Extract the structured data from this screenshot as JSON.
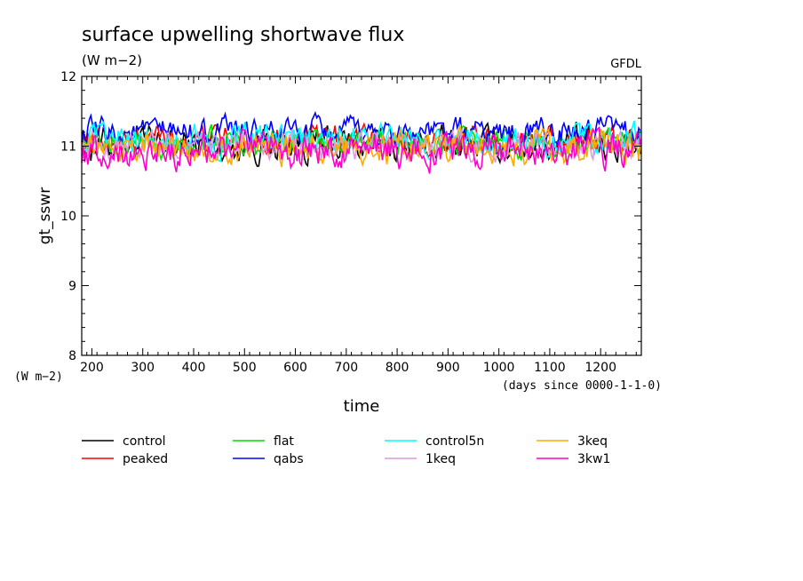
{
  "chart_data": {
    "type": "line",
    "title": "surface upwelling shortwave flux",
    "units": "(W m−2)",
    "source": "GFDL",
    "ylabel": "gt_sswr",
    "xlabel": "time",
    "x_units": "(days since 0000-1-1-0)",
    "y_units_corner": "(W m−2)",
    "xlim": [
      180,
      1280
    ],
    "ylim": [
      8,
      12
    ],
    "x_ticks": [
      200,
      300,
      400,
      500,
      600,
      700,
      800,
      900,
      1000,
      1100,
      1200
    ],
    "y_ticks": [
      8,
      9,
      10,
      11,
      12
    ],
    "grid": false,
    "legend_position": "bottom",
    "series": [
      {
        "name": "control",
        "color": "#000000",
        "mean": 11.02,
        "amplitude": 0.28
      },
      {
        "name": "peaked",
        "color": "#ff0000",
        "mean": 11.1,
        "amplitude": 0.22
      },
      {
        "name": "flat",
        "color": "#00dd00",
        "mean": 11.05,
        "amplitude": 0.22
      },
      {
        "name": "qabs",
        "color": "#0000ff",
        "mean": 11.2,
        "amplitude": 0.22
      },
      {
        "name": "control5n",
        "color": "#00ffff",
        "mean": 11.08,
        "amplitude": 0.25
      },
      {
        "name": "1keq",
        "color": "#dd99dd",
        "mean": 11.0,
        "amplitude": 0.22
      },
      {
        "name": "3keq",
        "color": "#ffaa00",
        "mean": 10.98,
        "amplitude": 0.26
      },
      {
        "name": "3kw1",
        "color": "#ff00cc",
        "mean": 10.93,
        "amplitude": 0.28
      }
    ]
  }
}
